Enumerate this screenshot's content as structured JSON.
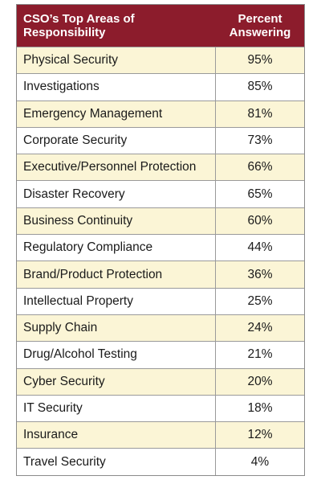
{
  "table": {
    "header": [
      "CSO’s Top Areas of Responsibility",
      "Percent Answering"
    ],
    "rows": [
      [
        "Physical Security",
        "95%"
      ],
      [
        "Investigations",
        "85%"
      ],
      [
        "Emergency Management",
        "81%"
      ],
      [
        "Corporate Security",
        "73%"
      ],
      [
        "Executive/Personnel Protection",
        "66%"
      ],
      [
        "Disaster Recovery",
        "65%"
      ],
      [
        "Business Continuity",
        "60%"
      ],
      [
        "Regulatory Compliance",
        "44%"
      ],
      [
        "Brand/Product Protection",
        "36%"
      ],
      [
        "Intellectual Property",
        "25%"
      ],
      [
        "Supply Chain",
        "24%"
      ],
      [
        "Drug/Alcohol Testing",
        "21%"
      ],
      [
        "Cyber Security",
        "20%"
      ],
      [
        "IT Security",
        "18%"
      ],
      [
        "Insurance",
        "12%"
      ],
      [
        "Travel Security",
        "4%"
      ]
    ]
  }
}
